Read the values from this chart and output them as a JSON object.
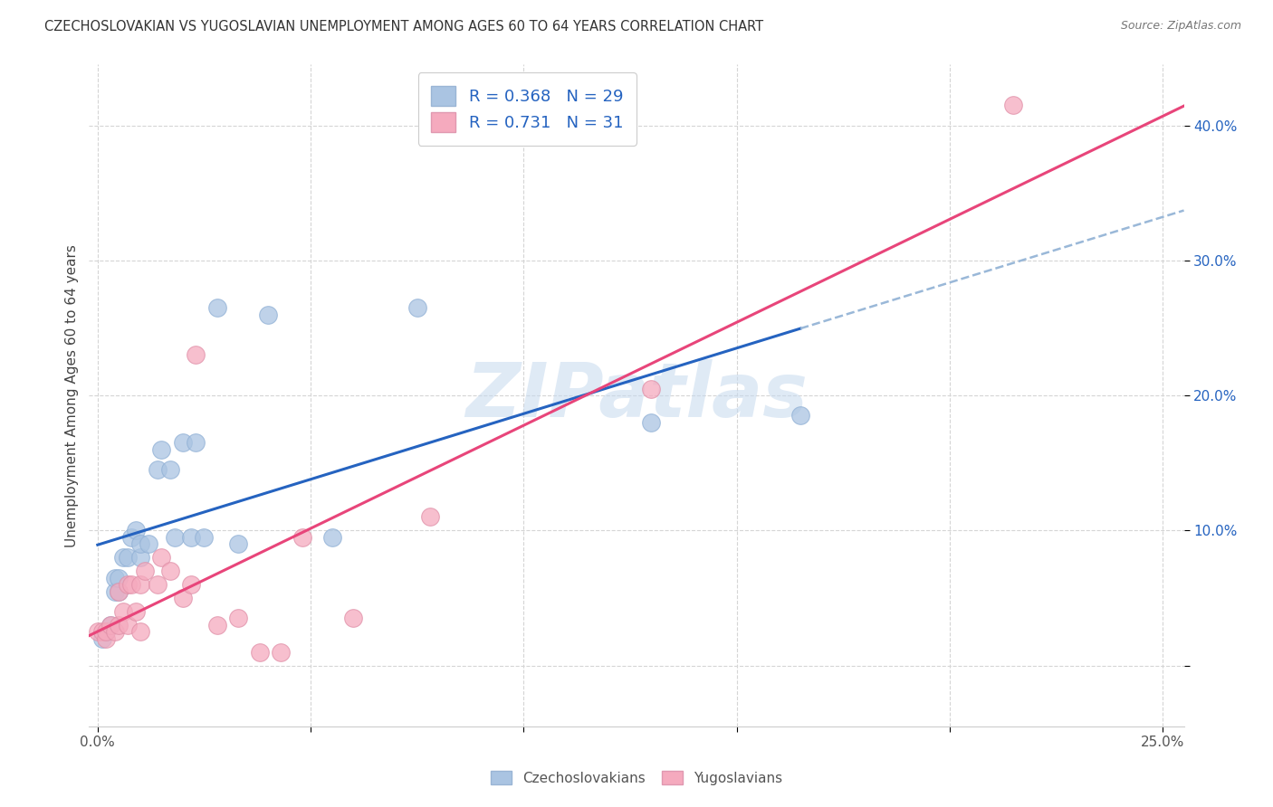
{
  "title": "CZECHOSLOVAKIAN VS YUGOSLAVIAN UNEMPLOYMENT AMONG AGES 60 TO 64 YEARS CORRELATION CHART",
  "source": "Source: ZipAtlas.com",
  "ylabel": "Unemployment Among Ages 60 to 64 years",
  "xlim": [
    -0.002,
    0.255
  ],
  "ylim": [
    -0.045,
    0.445
  ],
  "blue_R": 0.368,
  "blue_N": 29,
  "pink_R": 0.731,
  "pink_N": 31,
  "blue_color": "#aac4e2",
  "pink_color": "#f5aabe",
  "blue_line_color": "#2563c0",
  "pink_line_color": "#e8457a",
  "dashed_line_color": "#9ab8d8",
  "legend_text_color": "#2563c0",
  "watermark_color": "#c5d9ee",
  "watermark": "ZIPatlas",
  "blue_x": [
    0.001,
    0.002,
    0.003,
    0.004,
    0.004,
    0.005,
    0.005,
    0.006,
    0.007,
    0.008,
    0.009,
    0.01,
    0.01,
    0.012,
    0.014,
    0.015,
    0.017,
    0.018,
    0.02,
    0.022,
    0.023,
    0.025,
    0.028,
    0.033,
    0.04,
    0.055,
    0.075,
    0.13,
    0.165
  ],
  "blue_y": [
    0.02,
    0.025,
    0.03,
    0.055,
    0.065,
    0.055,
    0.065,
    0.08,
    0.08,
    0.095,
    0.1,
    0.08,
    0.09,
    0.09,
    0.145,
    0.16,
    0.145,
    0.095,
    0.165,
    0.095,
    0.165,
    0.095,
    0.265,
    0.09,
    0.26,
    0.095,
    0.265,
    0.18,
    0.185
  ],
  "pink_x": [
    0.0,
    0.001,
    0.002,
    0.002,
    0.003,
    0.004,
    0.005,
    0.005,
    0.006,
    0.007,
    0.007,
    0.008,
    0.009,
    0.01,
    0.01,
    0.011,
    0.014,
    0.015,
    0.017,
    0.02,
    0.022,
    0.023,
    0.028,
    0.033,
    0.038,
    0.043,
    0.048,
    0.06,
    0.078,
    0.13,
    0.215
  ],
  "pink_y": [
    0.025,
    0.025,
    0.02,
    0.025,
    0.03,
    0.025,
    0.03,
    0.055,
    0.04,
    0.03,
    0.06,
    0.06,
    0.04,
    0.025,
    0.06,
    0.07,
    0.06,
    0.08,
    0.07,
    0.05,
    0.06,
    0.23,
    0.03,
    0.035,
    0.01,
    0.01,
    0.095,
    0.035,
    0.11,
    0.205,
    0.415
  ]
}
